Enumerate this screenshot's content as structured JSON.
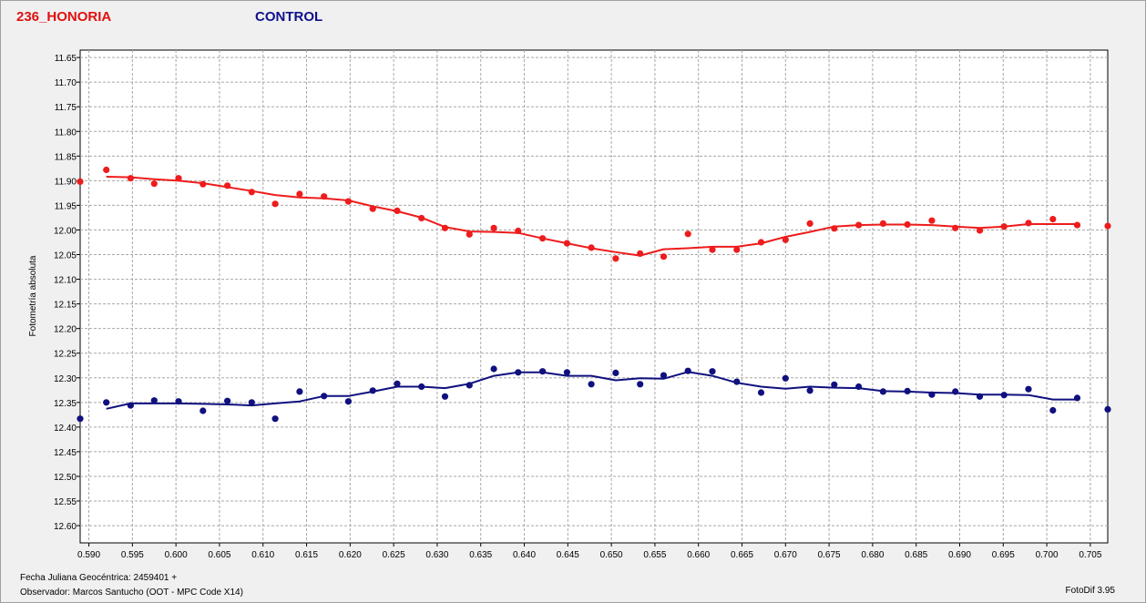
{
  "chart_data": {
    "type": "scatter",
    "legend": {
      "series_1": "236_HONORIA",
      "series_2": "CONTROL"
    },
    "ylabel": "Fotometría absoluta",
    "xlim": [
      0.589,
      0.707
    ],
    "ylim": [
      11.635,
      12.635
    ],
    "y_inverted": true,
    "grid": true,
    "x_ticks": [
      "0.590",
      "0.595",
      "0.600",
      "0.605",
      "0.610",
      "0.615",
      "0.620",
      "0.625",
      "0.630",
      "0.635",
      "0.640",
      "0.645",
      "0.650",
      "0.655",
      "0.660",
      "0.665",
      "0.670",
      "0.675",
      "0.680",
      "0.685",
      "0.690",
      "0.695",
      "0.700",
      "0.705"
    ],
    "y_ticks": [
      "11.65",
      "11.70",
      "11.75",
      "11.80",
      "11.85",
      "11.90",
      "11.95",
      "12.00",
      "12.05",
      "12.10",
      "12.15",
      "12.20",
      "12.25",
      "12.30",
      "12.35",
      "12.40",
      "12.45",
      "12.50",
      "12.55",
      "12.60"
    ],
    "series": [
      {
        "name": "236_HONORIA",
        "color": "#ee1c1c",
        "points": {
          "x": [
            0.589,
            0.592,
            0.5948,
            0.5975,
            0.6003,
            0.6031,
            0.6059,
            0.6087,
            0.6114,
            0.6142,
            0.617,
            0.6198,
            0.6226,
            0.6254,
            0.6282,
            0.6309,
            0.6337,
            0.6365,
            0.6393,
            0.6421,
            0.6449,
            0.6477,
            0.6505,
            0.6533,
            0.656,
            0.6588,
            0.6616,
            0.6644,
            0.6672,
            0.67,
            0.6728,
            0.6756,
            0.6784,
            0.6812,
            0.684,
            0.6868,
            0.6895,
            0.6923,
            0.6951,
            0.6979,
            0.7007,
            0.7035,
            0.707
          ],
          "y": [
            11.902,
            11.878,
            11.895,
            11.906,
            11.895,
            11.907,
            11.91,
            11.923,
            11.947,
            11.927,
            11.932,
            11.942,
            11.957,
            11.961,
            11.976,
            11.996,
            12.009,
            11.996,
            12.002,
            12.017,
            12.027,
            12.036,
            12.058,
            12.048,
            12.054,
            12.008,
            12.04,
            12.04,
            12.025,
            12.02,
            11.987,
            11.997,
            11.99,
            11.987,
            11.989,
            11.981,
            11.996,
            12.001,
            11.993,
            11.986,
            11.978,
            11.99,
            11.992
          ]
        },
        "fit": {
          "x": [
            0.592,
            0.5948,
            0.5975,
            0.6003,
            0.6031,
            0.6059,
            0.6087,
            0.6114,
            0.6142,
            0.617,
            0.6198,
            0.6226,
            0.6254,
            0.6282,
            0.6309,
            0.6337,
            0.6365,
            0.6393,
            0.6421,
            0.6449,
            0.6477,
            0.6505,
            0.6533,
            0.656,
            0.6588,
            0.6616,
            0.6644,
            0.6672,
            0.67,
            0.6728,
            0.6756,
            0.6784,
            0.6812,
            0.684,
            0.6868,
            0.6895,
            0.6923,
            0.6951,
            0.6979,
            0.7007,
            0.7035
          ],
          "y": [
            11.892,
            11.893,
            11.897,
            11.9,
            11.905,
            11.913,
            11.921,
            11.929,
            11.934,
            11.936,
            11.94,
            11.952,
            11.962,
            11.975,
            11.994,
            12.003,
            12.004,
            12.006,
            12.017,
            12.027,
            12.037,
            12.045,
            12.052,
            12.039,
            12.037,
            12.034,
            12.034,
            12.027,
            12.014,
            12.004,
            11.993,
            11.99,
            11.989,
            11.989,
            11.99,
            11.993,
            11.996,
            11.993,
            11.988,
            11.988,
            11.988
          ]
        }
      },
      {
        "name": "CONTROL",
        "color": "#10107f",
        "points": {
          "x": [
            0.589,
            0.592,
            0.5948,
            0.5975,
            0.6003,
            0.6031,
            0.6059,
            0.6087,
            0.6114,
            0.6142,
            0.617,
            0.6198,
            0.6226,
            0.6254,
            0.6282,
            0.6309,
            0.6337,
            0.6365,
            0.6393,
            0.6421,
            0.6449,
            0.6477,
            0.6505,
            0.6533,
            0.656,
            0.6588,
            0.6616,
            0.6644,
            0.6672,
            0.67,
            0.6728,
            0.6756,
            0.6784,
            0.6812,
            0.684,
            0.6868,
            0.6895,
            0.6923,
            0.6951,
            0.6979,
            0.7007,
            0.7035,
            0.707
          ],
          "y": [
            12.383,
            12.35,
            12.356,
            12.346,
            12.348,
            12.367,
            12.347,
            12.35,
            12.383,
            12.328,
            12.337,
            12.348,
            12.326,
            12.312,
            12.318,
            12.338,
            12.315,
            12.282,
            12.289,
            12.287,
            12.289,
            12.313,
            12.29,
            12.313,
            12.295,
            12.286,
            12.287,
            12.308,
            12.33,
            12.301,
            12.326,
            12.314,
            12.318,
            12.328,
            12.327,
            12.334,
            12.328,
            12.338,
            12.335,
            12.323,
            12.366,
            12.341,
            12.364
          ]
        },
        "fit": {
          "x": [
            0.592,
            0.5948,
            0.5975,
            0.6003,
            0.6031,
            0.6059,
            0.6087,
            0.6114,
            0.6142,
            0.617,
            0.6198,
            0.6226,
            0.6254,
            0.6282,
            0.6309,
            0.6337,
            0.6365,
            0.6393,
            0.6421,
            0.6449,
            0.6477,
            0.6505,
            0.6533,
            0.656,
            0.6588,
            0.6616,
            0.6644,
            0.6672,
            0.67,
            0.6728,
            0.6756,
            0.6784,
            0.6812,
            0.684,
            0.6868,
            0.6895,
            0.6923,
            0.6951,
            0.6979,
            0.7007,
            0.7035
          ],
          "y": [
            12.363,
            12.352,
            12.352,
            12.352,
            12.353,
            12.354,
            12.356,
            12.352,
            12.348,
            12.337,
            12.337,
            12.328,
            12.318,
            12.318,
            12.321,
            12.312,
            12.296,
            12.289,
            12.289,
            12.296,
            12.296,
            12.305,
            12.301,
            12.302,
            12.288,
            12.296,
            12.31,
            12.318,
            12.322,
            12.318,
            12.32,
            12.321,
            12.327,
            12.328,
            12.33,
            12.331,
            12.334,
            12.334,
            12.335,
            12.344,
            12.344
          ]
        }
      }
    ]
  },
  "footer": {
    "line1": "Fecha Juliana Geocéntrica: 2459401 +",
    "line2": "Observador: Marcos Santucho (OOT - MPC Code X14)",
    "software": "FotoDif 3.95"
  }
}
